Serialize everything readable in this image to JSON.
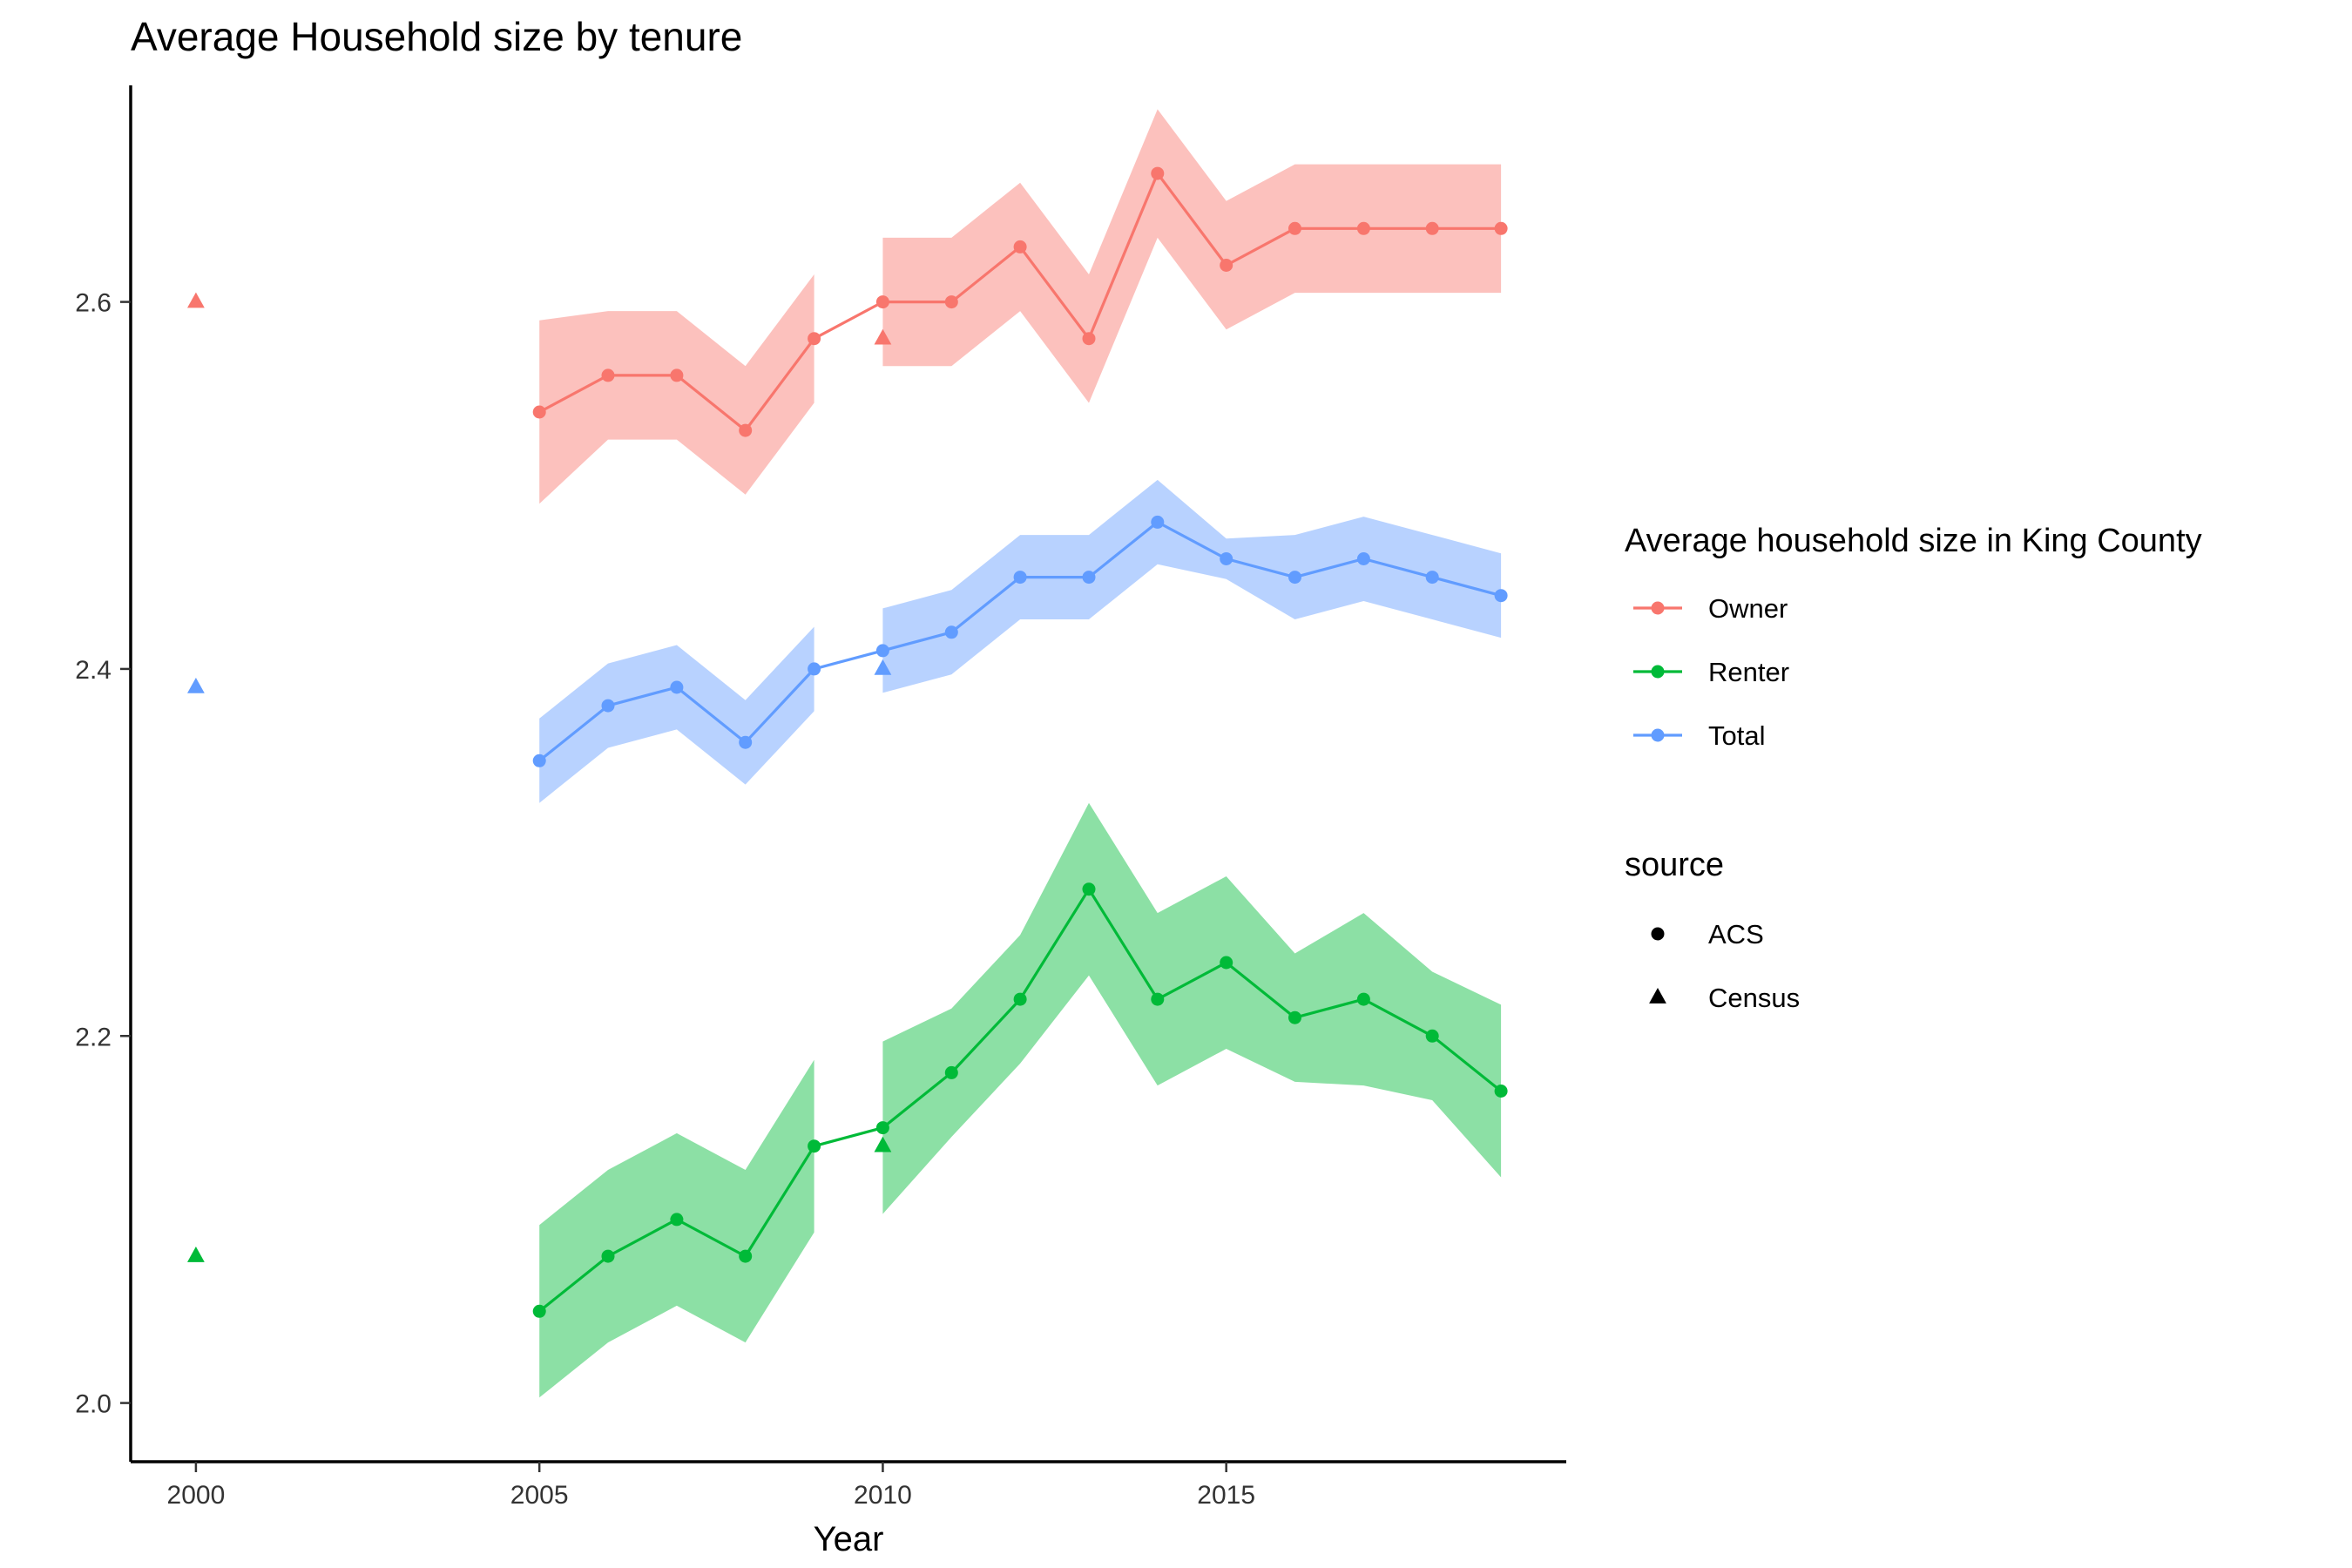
{
  "chart_data": {
    "type": "line",
    "title": "Average Household size by tenure",
    "xlabel": "Year",
    "ylabel": "",
    "xlim": [
      1999.05,
      2019.95
    ],
    "ylim": [
      1.968,
      2.718
    ],
    "x_ticks": [
      2000,
      2005,
      2010,
      2015
    ],
    "y_ticks": [
      2.0,
      2.2,
      2.4,
      2.6
    ],
    "y_tick_labels": [
      "2.0",
      "2.2",
      "2.4",
      "2.6"
    ],
    "grid": false,
    "legend_placement": "right",
    "legends": [
      {
        "title": "Average household size in King County",
        "entries": [
          {
            "label": "Owner",
            "color": "#F8766D"
          },
          {
            "label": "Renter",
            "color": "#00BA38"
          },
          {
            "label": "Total",
            "color": "#619CFF"
          }
        ]
      },
      {
        "title": "source",
        "entries": [
          {
            "label": "ACS",
            "shape": "circle"
          },
          {
            "label": "Census",
            "shape": "triangle"
          }
        ]
      }
    ],
    "series": [
      {
        "name": "Owner",
        "color": "#F8766D",
        "band_color": "#F8766D",
        "acs": {
          "x": [
            2005,
            2006,
            2007,
            2008,
            2009,
            2010,
            2011,
            2012,
            2013,
            2014,
            2015,
            2016,
            2017,
            2018,
            2019
          ],
          "y": [
            2.54,
            2.56,
            2.56,
            2.53,
            2.58,
            2.6,
            2.6,
            2.63,
            2.58,
            2.67,
            2.62,
            2.64,
            2.64,
            2.64,
            2.64
          ],
          "lower": [
            2.49,
            2.525,
            2.525,
            2.495,
            2.545,
            2.565,
            2.565,
            2.595,
            2.545,
            2.635,
            2.585,
            2.605,
            2.605,
            2.605,
            2.605
          ],
          "upper": [
            2.59,
            2.595,
            2.595,
            2.565,
            2.615,
            2.635,
            2.635,
            2.665,
            2.615,
            2.705,
            2.655,
            2.675,
            2.675,
            2.675,
            2.675
          ]
        },
        "census": {
          "x": [
            2000,
            2010
          ],
          "y": [
            2.6,
            2.58
          ]
        }
      },
      {
        "name": "Renter",
        "color": "#00BA38",
        "band_color": "#00BA38",
        "acs": {
          "x": [
            2005,
            2006,
            2007,
            2008,
            2009,
            2010,
            2011,
            2012,
            2013,
            2014,
            2015,
            2016,
            2017,
            2018,
            2019
          ],
          "y": [
            2.05,
            2.08,
            2.1,
            2.08,
            2.14,
            2.15,
            2.18,
            2.22,
            2.28,
            2.22,
            2.24,
            2.21,
            2.22,
            2.2,
            2.17
          ],
          "lower": [
            2.003,
            2.033,
            2.053,
            2.033,
            2.093,
            2.103,
            2.145,
            2.185,
            2.233,
            2.173,
            2.193,
            2.175,
            2.173,
            2.165,
            2.123
          ],
          "upper": [
            2.097,
            2.127,
            2.147,
            2.127,
            2.187,
            2.197,
            2.215,
            2.255,
            2.327,
            2.267,
            2.287,
            2.245,
            2.267,
            2.235,
            2.217
          ]
        },
        "census": {
          "x": [
            2000,
            2010
          ],
          "y": [
            2.08,
            2.14
          ]
        }
      },
      {
        "name": "Total",
        "color": "#619CFF",
        "band_color": "#619CFF",
        "acs": {
          "x": [
            2005,
            2006,
            2007,
            2008,
            2009,
            2010,
            2011,
            2012,
            2013,
            2014,
            2015,
            2016,
            2017,
            2018,
            2019
          ],
          "y": [
            2.35,
            2.38,
            2.39,
            2.36,
            2.4,
            2.41,
            2.42,
            2.45,
            2.45,
            2.48,
            2.46,
            2.45,
            2.46,
            2.45,
            2.44
          ],
          "lower": [
            2.327,
            2.357,
            2.367,
            2.337,
            2.377,
            2.387,
            2.397,
            2.427,
            2.427,
            2.457,
            2.449,
            2.427,
            2.437,
            2.427,
            2.417
          ],
          "upper": [
            2.373,
            2.403,
            2.413,
            2.383,
            2.423,
            2.433,
            2.443,
            2.473,
            2.473,
            2.503,
            2.471,
            2.473,
            2.483,
            2.473,
            2.463
          ]
        },
        "census": {
          "x": [
            2000,
            2010
          ],
          "y": [
            2.39,
            2.4
          ]
        }
      }
    ]
  }
}
